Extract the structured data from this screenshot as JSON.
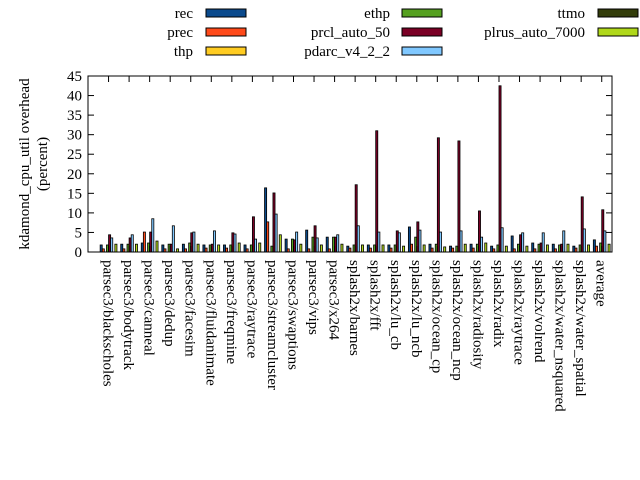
{
  "chart_data": {
    "type": "bar",
    "ylabel": [
      "kdamond_cpu_util overhead",
      "(percent)"
    ],
    "xlabel": "",
    "ylim": [
      0,
      45
    ],
    "yticks": [
      0,
      5,
      10,
      15,
      20,
      25,
      30,
      35,
      40,
      45
    ],
    "grid": false,
    "legend_placement": "top (outside, 3 columns)",
    "categories": [
      "parsec3/blackscholes",
      "parsec3/bodytrack",
      "parsec3/canneal",
      "parsec3/dedup",
      "parsec3/facesim",
      "parsec3/fluidanimate",
      "parsec3/freqmine",
      "parsec3/raytrace",
      "parsec3/streamcluster",
      "parsec3/swaptions",
      "parsec3/vips",
      "parsec3/x264",
      "splash2x/barnes",
      "splash2x/fft",
      "splash2x/lu_cb",
      "splash2x/lu_ncb",
      "splash2x/ocean_cp",
      "splash2x/ocean_ncp",
      "splash2x/radiosity",
      "splash2x/radix",
      "splash2x/raytrace",
      "splash2x/volrend",
      "splash2x/water_nsquared",
      "splash2x/water_spatial",
      "average"
    ],
    "series": [
      {
        "name": "rec",
        "color": "#0b4a8c",
        "values": [
          1.8,
          2.0,
          2.3,
          1.8,
          2.0,
          1.8,
          1.8,
          1.8,
          16.4,
          3.3,
          5.6,
          3.8,
          1.5,
          1.8,
          1.8,
          6.4,
          2.0,
          1.5,
          2.0,
          1.5,
          4.1,
          2.3,
          2.0,
          1.5,
          3.1
        ]
      },
      {
        "name": "prec",
        "color": "#ff4a1a",
        "values": [
          0.8,
          0.8,
          5.1,
          0.8,
          0.8,
          1.0,
          1.0,
          0.8,
          7.7,
          0.8,
          0.8,
          0.8,
          1.0,
          1.0,
          1.0,
          2.0,
          1.0,
          1.0,
          1.0,
          0.8,
          0.8,
          0.8,
          0.8,
          1.0,
          1.5
        ]
      },
      {
        "name": "thp",
        "color": "#ffcc22",
        "values": [
          0,
          0,
          0,
          0,
          0,
          0,
          0,
          0,
          0,
          0,
          0,
          0,
          0,
          0,
          0,
          0,
          0,
          0,
          0,
          0,
          0,
          0,
          0,
          0,
          0
        ]
      },
      {
        "name": "ethp",
        "color": "#55a020",
        "values": [
          1.8,
          2.0,
          2.3,
          2.0,
          2.3,
          1.8,
          1.8,
          1.8,
          1.5,
          3.3,
          3.8,
          3.8,
          1.8,
          1.8,
          1.8,
          3.8,
          2.0,
          1.5,
          2.0,
          1.8,
          2.0,
          2.0,
          1.8,
          1.8,
          2.3
        ]
      },
      {
        "name": "prcl_auto_50",
        "color": "#7a0025",
        "values": [
          4.4,
          3.6,
          5.1,
          2.0,
          4.9,
          2.0,
          4.9,
          9.0,
          15.1,
          3.1,
          6.7,
          3.8,
          17.2,
          31.0,
          5.4,
          7.7,
          29.2,
          28.4,
          10.5,
          42.5,
          4.4,
          2.3,
          2.0,
          14.1,
          10.8
        ]
      },
      {
        "name": "pdarc_v4_2_2",
        "color": "#80c8ff",
        "values": [
          3.6,
          4.4,
          8.5,
          6.7,
          5.1,
          5.4,
          4.6,
          3.3,
          9.7,
          5.1,
          3.6,
          4.4,
          6.7,
          5.1,
          4.9,
          5.6,
          5.1,
          5.4,
          3.8,
          6.2,
          4.9,
          4.9,
          5.4,
          5.9,
          5.4
        ]
      },
      {
        "name": "ttmo",
        "color": "#333d0a",
        "values": [
          0,
          0,
          0,
          0,
          0,
          0,
          0,
          0,
          0,
          0,
          0,
          0,
          0,
          0,
          0,
          0,
          0,
          0,
          0,
          0,
          0,
          0,
          0,
          0,
          0
        ]
      },
      {
        "name": "plrus_auto_7000",
        "color": "#b0d81a",
        "values": [
          2.0,
          2.0,
          2.8,
          0.8,
          2.0,
          1.8,
          2.3,
          2.3,
          4.4,
          2.0,
          1.8,
          2.0,
          1.8,
          1.8,
          1.5,
          1.8,
          1.3,
          2.0,
          2.3,
          1.5,
          1.5,
          1.8,
          2.0,
          1.8,
          2.0
        ]
      }
    ]
  }
}
